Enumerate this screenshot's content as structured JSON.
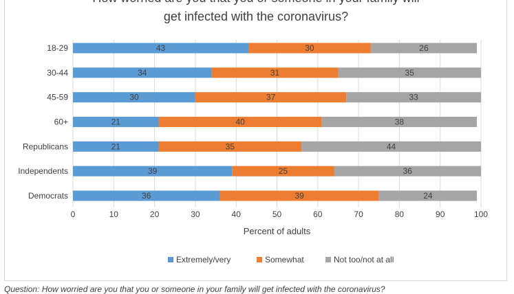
{
  "chart_data": {
    "type": "bar",
    "orientation": "horizontal",
    "stacked": true,
    "title_lines": [
      "How worried are you that you or someone in your family will",
      "get infected with the coronavirus?"
    ],
    "categories": [
      "18-29",
      "30-44",
      "45-59",
      "60+",
      "Republicans",
      "Independents",
      "Democrats"
    ],
    "series": [
      {
        "name": "Extremely/very",
        "color": "#5b9bd5",
        "values": [
          43,
          34,
          30,
          21,
          21,
          39,
          36
        ]
      },
      {
        "name": "Somewhat",
        "color": "#ed7d31",
        "values": [
          30,
          31,
          37,
          40,
          35,
          25,
          39
        ]
      },
      {
        "name": "Not too/not at all",
        "color": "#a5a5a5",
        "values": [
          26,
          35,
          33,
          38,
          44,
          36,
          24
        ]
      }
    ],
    "xlabel": "Percent of adults",
    "xlim": [
      0,
      100
    ],
    "xticks": [
      0,
      10,
      20,
      30,
      40,
      50,
      60,
      70,
      80,
      90,
      100
    ],
    "grid": "vertical",
    "gridline_color": "#d9d9d9",
    "legend_position": "bottom"
  },
  "caption": "Question: How worried are you that you or someone in your family will get infected with the coronavirus?"
}
